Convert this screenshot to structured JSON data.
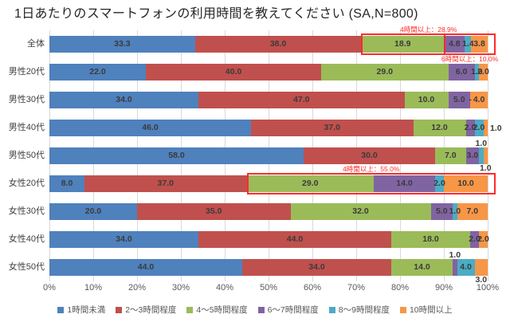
{
  "title": "1日あたりのスマートフォンの利用時間を教えてください (SA,N=800)",
  "colors": {
    "annotation": "#FF2B2B",
    "grid": "#D9D9D9",
    "value_label": "#3B3B3B",
    "axis_text": "#595959"
  },
  "chart_data": {
    "type": "bar",
    "stacked": true,
    "orientation": "horizontal",
    "title": "1日あたりのスマートフォンの利用時間を教えてください (SA,N=800)",
    "xlim": [
      0,
      100
    ],
    "x_ticks": [
      "0%",
      "10%",
      "20%",
      "30%",
      "40%",
      "50%",
      "60%",
      "70%",
      "80%",
      "90%",
      "100%"
    ],
    "grid": true,
    "legend_position": "bottom",
    "series": [
      {
        "name": "1時間未満",
        "color": "#4F81BD"
      },
      {
        "name": "2〜3時間程度",
        "color": "#C0504D"
      },
      {
        "name": "4〜5時間程度",
        "color": "#9BBB59"
      },
      {
        "name": "6〜7時間程度",
        "color": "#8064A2"
      },
      {
        "name": "8〜9時間程度",
        "color": "#4BACC6"
      },
      {
        "name": "10時間以上",
        "color": "#F79646"
      }
    ],
    "rows": [
      {
        "category": "全体",
        "values": [
          33.3,
          38.0,
          18.9,
          4.8,
          1.4,
          3.8
        ],
        "labels": [
          "33.3",
          "38.0",
          "18.9",
          "4.8",
          "1.4",
          "3.8"
        ],
        "label_pos": [
          "in",
          "in",
          "in",
          "in",
          "in",
          "in"
        ]
      },
      {
        "category": "男性20代",
        "values": [
          22.0,
          40.0,
          29.0,
          6.0,
          1.0,
          2.0
        ],
        "labels": [
          "22.0",
          "40.0",
          "29.0",
          "6.0",
          "1.0",
          "2.0"
        ],
        "label_pos": [
          "in",
          "in",
          "in",
          "in",
          "in",
          "in"
        ]
      },
      {
        "category": "男性30代",
        "values": [
          34.0,
          47.0,
          10.0,
          5.0,
          0.0,
          4.0
        ],
        "labels": [
          "34.0",
          "47.0",
          "10.0",
          "5.0",
          "-",
          "4.0"
        ],
        "label_pos": [
          "in",
          "in",
          "in",
          "in",
          "in",
          "in"
        ]
      },
      {
        "category": "男性40代",
        "values": [
          46.0,
          37.0,
          12.0,
          2.0,
          2.0,
          1.0
        ],
        "labels": [
          "46.0",
          "37.0",
          "12.0",
          "2.0",
          "2.0",
          "1.0"
        ],
        "label_pos": [
          "in",
          "in",
          "in",
          "in",
          "in",
          "right"
        ]
      },
      {
        "category": "男性50代",
        "values": [
          58.0,
          30.0,
          7.0,
          3.0,
          1.0,
          1.0
        ],
        "labels": [
          "58.0",
          "30.0",
          "7.0",
          "3.0",
          "1.0",
          "1.0"
        ],
        "label_pos": [
          "in",
          "in",
          "in",
          "in",
          "above",
          "below"
        ]
      },
      {
        "category": "女性20代",
        "values": [
          8.0,
          37.0,
          29.0,
          14.0,
          2.0,
          10.0
        ],
        "labels": [
          "8.0",
          "37.0",
          "29.0",
          "14.0",
          "2.0",
          "10.0"
        ],
        "label_pos": [
          "in",
          "in",
          "in",
          "in",
          "in",
          "in"
        ]
      },
      {
        "category": "女性30代",
        "values": [
          20.0,
          35.0,
          32.0,
          5.0,
          1.0,
          7.0
        ],
        "labels": [
          "20.0",
          "35.0",
          "32.0",
          "5.0",
          "1.0",
          "7.0"
        ],
        "label_pos": [
          "in",
          "in",
          "in",
          "in",
          "in",
          "in"
        ]
      },
      {
        "category": "女性40代",
        "values": [
          34.0,
          44.0,
          18.0,
          2.0,
          0.0,
          2.0
        ],
        "labels": [
          "34.0",
          "44.0",
          "18.0",
          "2.0",
          "",
          "2.0"
        ],
        "label_pos": [
          "in",
          "in",
          "in",
          "in",
          "in",
          "in"
        ]
      },
      {
        "category": "女性50代",
        "values": [
          44.0,
          34.0,
          14.0,
          1.0,
          4.0,
          3.0
        ],
        "labels": [
          "44.0",
          "34.0",
          "14.0",
          "1.0",
          "4.0",
          "3.0"
        ],
        "label_pos": [
          "in",
          "in",
          "in",
          "above",
          "in",
          "below"
        ]
      }
    ],
    "annotations": [
      {
        "row": 0,
        "from_series": 2,
        "label": "4時間以上：28.9%",
        "label_side": "above"
      },
      {
        "row": 0,
        "from_series": 3,
        "label": "6時間以上：10.0%",
        "label_side": "below"
      },
      {
        "row": 5,
        "from_series": 2,
        "label": "4時間以上：55.0%",
        "label_side": "above"
      }
    ]
  }
}
